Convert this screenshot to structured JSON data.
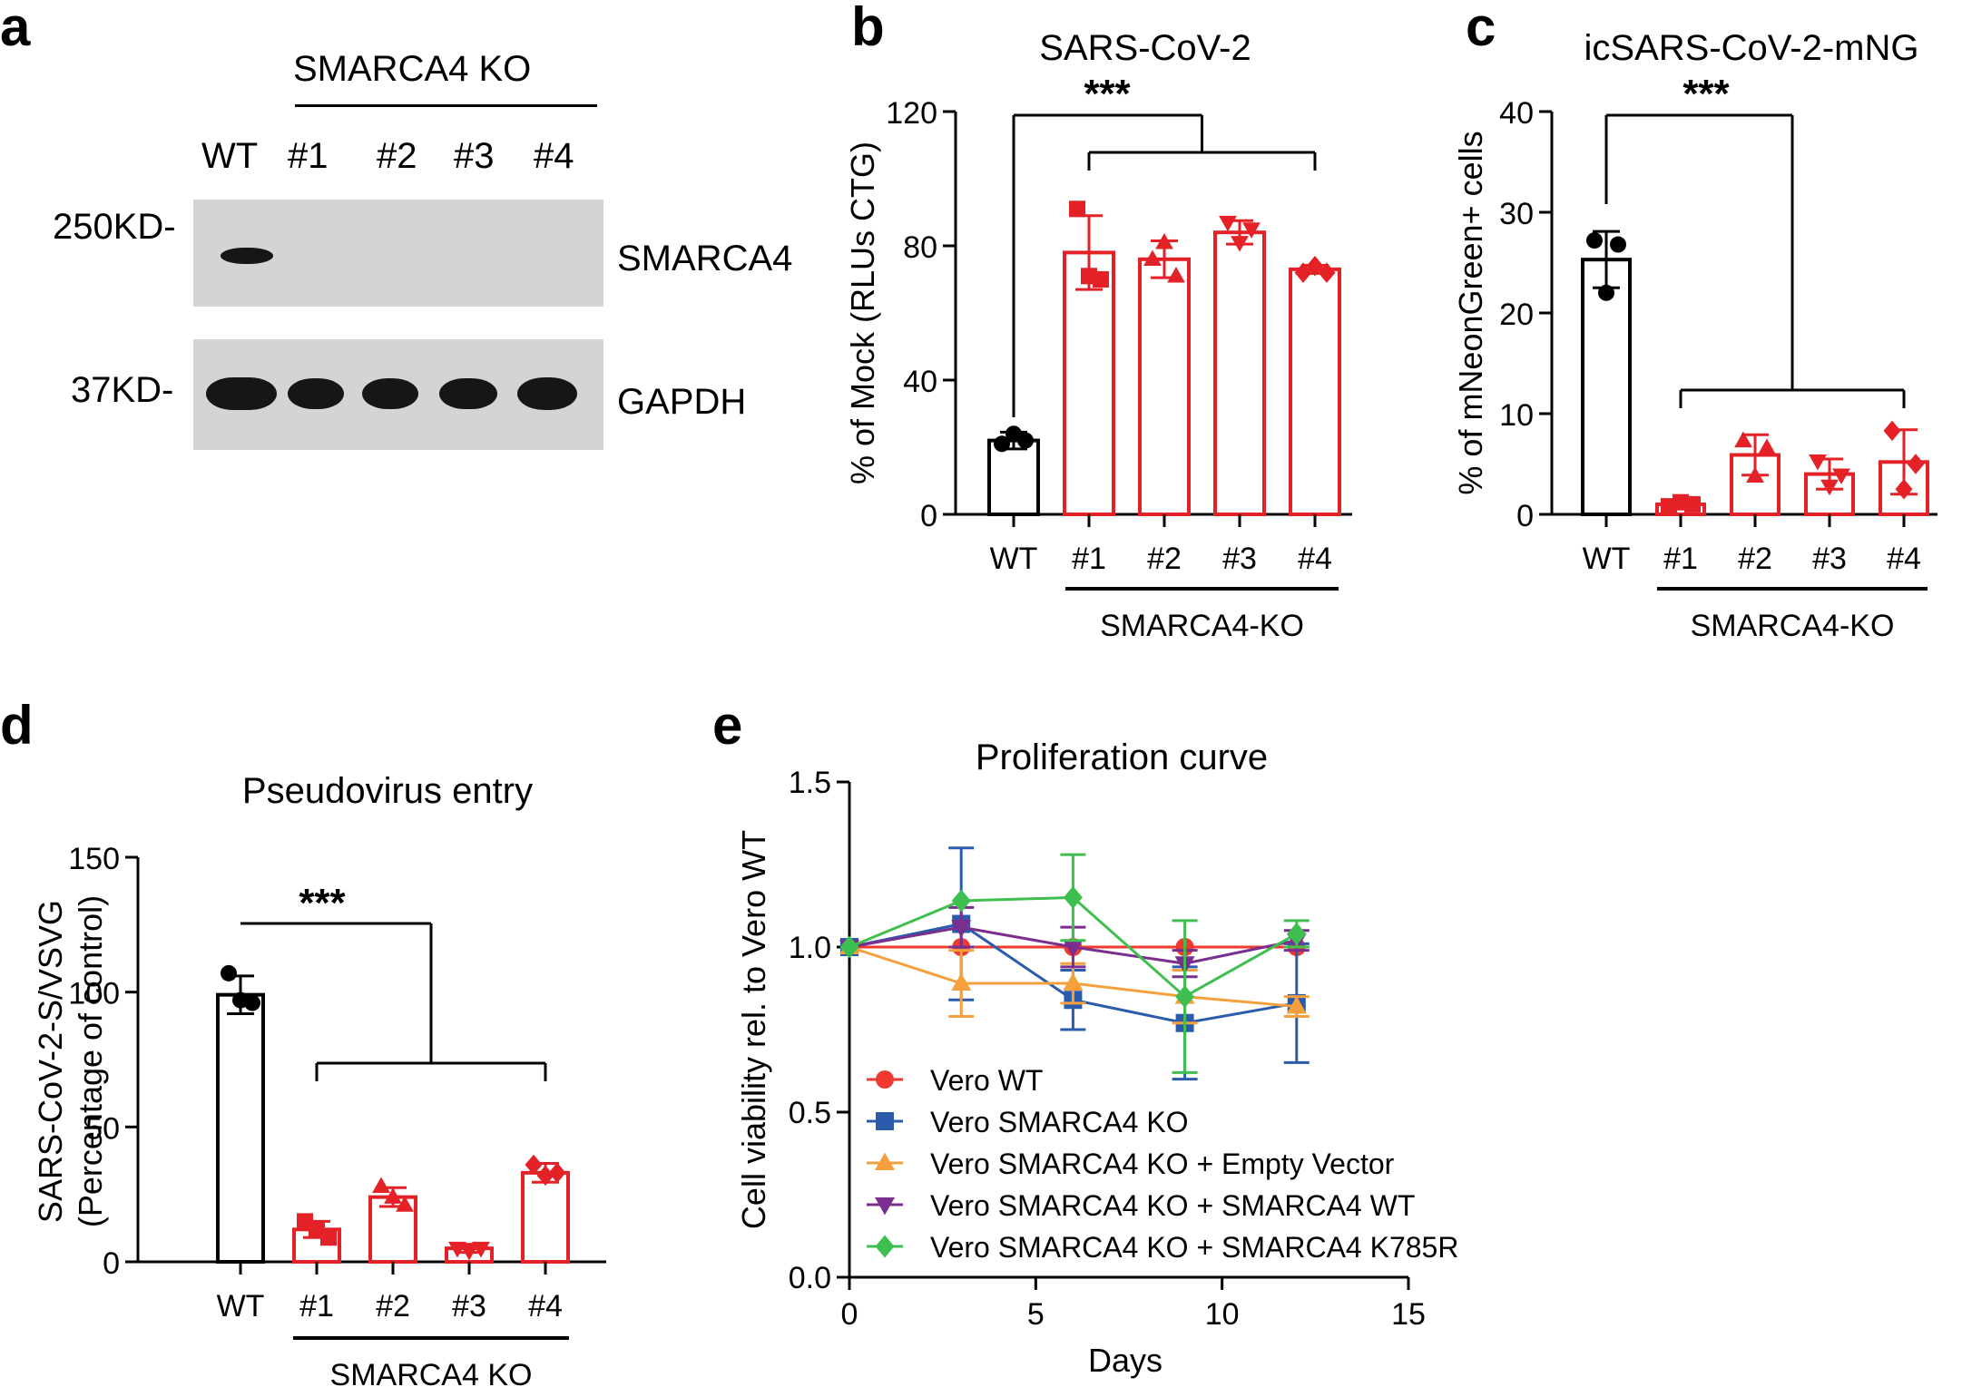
{
  "figure": {
    "panels": [
      "a",
      "b",
      "c",
      "d",
      "e"
    ],
    "colors": {
      "black": "#000000",
      "red": "#e32126",
      "blue": "#2a5cab",
      "orange": "#f5a03c",
      "purple": "#7a2e8e",
      "green": "#3fbf4f",
      "vero_wt_red": "#ee3a2f"
    }
  },
  "panel_a": {
    "group_label": "SMARCA4 KO",
    "lanes": [
      "WT",
      "#1",
      "#2",
      "#3",
      "#4"
    ],
    "blots": [
      {
        "marker": "250KD-",
        "protein": "SMARCA4"
      },
      {
        "marker": "37KD-",
        "protein": "GAPDH"
      }
    ]
  },
  "chart_data": [
    {
      "panel": "b",
      "type": "bar",
      "title": "SARS-CoV-2",
      "ylabel": "% of Mock (RLUs CTG)",
      "ylim": [
        0,
        120
      ],
      "yticks": [
        "0",
        "40",
        "80",
        "120"
      ],
      "categories": [
        "WT",
        "#1",
        "#2",
        "#3",
        "#4"
      ],
      "group_label": "SMARCA4-KO",
      "significance": "***",
      "values": [
        22,
        78,
        76,
        84,
        73
      ],
      "errors": [
        2.5,
        11,
        5.5,
        3.5,
        1.2
      ],
      "points": [
        [
          21,
          24,
          22
        ],
        [
          91,
          71,
          70
        ],
        [
          76,
          81,
          71
        ],
        [
          87,
          81,
          85
        ],
        [
          72,
          74,
          72
        ]
      ]
    },
    {
      "panel": "c",
      "type": "bar",
      "title": "icSARS-CoV-2-mNG",
      "ylabel": "% of mNeonGreen+ cells",
      "ylim": [
        0,
        40
      ],
      "yticks": [
        "0",
        "10",
        "20",
        "30",
        "40"
      ],
      "categories": [
        "WT",
        "#1",
        "#2",
        "#3",
        "#4"
      ],
      "group_label": "SMARCA4-KO",
      "significance": "***",
      "values": [
        25.3,
        1.0,
        5.9,
        4.0,
        5.2
      ],
      "errors": [
        2.8,
        0.3,
        2.0,
        1.5,
        3.2
      ],
      "points": [
        [
          27.2,
          22.0,
          26.8
        ],
        [
          0.8,
          1.2,
          1.0
        ],
        [
          7.3,
          3.8,
          6.6
        ],
        [
          5.3,
          2.8,
          3.9
        ],
        [
          8.3,
          2.5,
          5.0
        ]
      ]
    },
    {
      "panel": "d",
      "type": "bar",
      "title": "Pseudovirus entry",
      "ylabel": "SARS-CoV-2-S/VSVG",
      "ylabel2": "(Percentage of control)",
      "ylim": [
        0,
        150
      ],
      "yticks": [
        "0",
        "50",
        "100",
        "150"
      ],
      "categories": [
        "WT",
        "#1",
        "#2",
        "#3",
        "#4"
      ],
      "group_label": "SMARCA4 KO",
      "significance": "***",
      "values": [
        99,
        12,
        24,
        5,
        33
      ],
      "errors": [
        7,
        3,
        3.5,
        1.5,
        3.5
      ],
      "points": [
        [
          107,
          97,
          96
        ],
        [
          15,
          12,
          9
        ],
        [
          28,
          24,
          21
        ],
        [
          5,
          4,
          5
        ],
        [
          36,
          32,
          33
        ]
      ]
    },
    {
      "panel": "e",
      "type": "line",
      "title": "Proliferation curve",
      "xlabel": "Days",
      "ylabel": "Cell viability rel. to Vero WT",
      "xlim": [
        0,
        15
      ],
      "ylim": [
        0.0,
        1.5
      ],
      "xticks": [
        "0",
        "5",
        "10",
        "15"
      ],
      "yticks": [
        "0.0",
        "0.5",
        "1.0",
        "1.5"
      ],
      "x": [
        0,
        3,
        6,
        9,
        12
      ],
      "series": [
        {
          "name": "Vero WT",
          "marker": "circle",
          "color": "#ee3a2f",
          "values": [
            1.0,
            1.0,
            1.0,
            1.0,
            1.0
          ],
          "errors": [
            0,
            0,
            0,
            0,
            0
          ]
        },
        {
          "name": "Vero SMARCA4 KO",
          "marker": "square",
          "color": "#2a5cab",
          "values": [
            1.0,
            1.07,
            0.84,
            0.77,
            0.83
          ],
          "errors": [
            0,
            0.23,
            0.09,
            0.17,
            0.18
          ]
        },
        {
          "name": "Vero SMARCA4 KO + Empty Vector",
          "marker": "triangle-up",
          "color": "#f5a03c",
          "values": [
            1.0,
            0.89,
            0.89,
            0.85,
            0.82
          ],
          "errors": [
            0,
            0.1,
            0.06,
            0.08,
            0.03
          ]
        },
        {
          "name": "Vero SMARCA4 KO + SMARCA4 WT",
          "marker": "triangle-down",
          "color": "#7a2e8e",
          "values": [
            1.0,
            1.06,
            1.0,
            0.95,
            1.02
          ],
          "errors": [
            0,
            0.06,
            0.06,
            0.04,
            0.03
          ]
        },
        {
          "name": "Vero SMARCA4 KO + SMARCA4 K785R",
          "marker": "diamond",
          "color": "#3fbf4f",
          "values": [
            1.0,
            1.14,
            1.15,
            0.85,
            1.04
          ],
          "errors": [
            0,
            0.0,
            0.13,
            0.23,
            0.04
          ]
        }
      ]
    }
  ]
}
